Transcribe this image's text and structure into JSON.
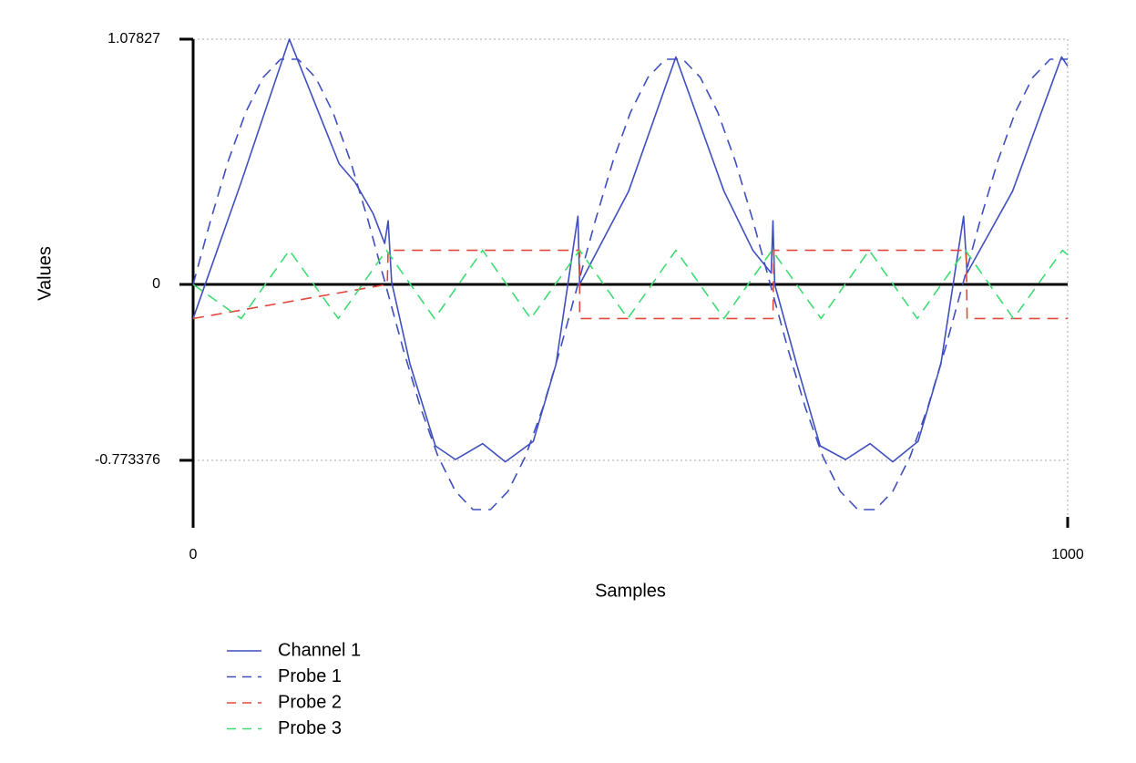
{
  "chart_data": {
    "type": "line",
    "x_label": "Samples",
    "y_label": "Values",
    "xlim": [
      0,
      1000
    ],
    "xticks": [
      0,
      1000
    ],
    "ylim": [
      -1.07,
      1.07827
    ],
    "yticks": [
      -0.773376,
      0,
      1.07827
    ],
    "grid": true,
    "legend": "bottom-left",
    "series": [
      {
        "name": "Channel 1",
        "color": "#3f4fbf",
        "dash": "solid",
        "x": [
          0,
          55,
          110,
          167,
          185,
          206,
          219,
          223,
          227,
          248,
          277,
          300,
          331,
          357,
          389,
          415,
          440,
          442,
          498,
          552,
          607,
          640,
          661,
          663,
          665,
          690,
          717,
          746,
          774,
          800,
          829,
          855,
          881,
          885,
          937,
          993,
          1000
        ],
        "values": [
          -0.15,
          0.45,
          1.07827,
          0.53,
          0.45,
          0.31,
          0.18,
          0.28,
          0.01,
          -0.35,
          -0.71,
          -0.77,
          -0.7,
          -0.78,
          -0.69,
          -0.35,
          0.3,
          0.0,
          0.41,
          1.0,
          0.41,
          0.15,
          0.05,
          0.28,
          0.0,
          -0.35,
          -0.71,
          -0.77,
          -0.7,
          -0.78,
          -0.69,
          -0.35,
          0.3,
          0.05,
          0.41,
          1.0,
          0.96
        ]
      },
      {
        "name": "Probe 1",
        "color": "#3f4fbf",
        "dash": "dashed",
        "x": [
          0,
          20,
          40,
          60,
          80,
          100,
          120,
          140,
          160,
          180,
          200,
          220,
          240,
          260,
          280,
          300,
          320,
          340,
          360,
          380,
          400,
          420,
          440,
          460,
          480,
          500,
          520,
          540,
          560,
          580,
          600,
          620,
          640,
          660,
          680,
          700,
          720,
          740,
          760,
          780,
          800,
          820,
          840,
          860,
          880,
          900,
          920,
          940,
          960,
          980,
          1000
        ],
        "values": [
          0,
          0.282,
          0.541,
          0.756,
          0.91,
          0.99,
          0.99,
          0.91,
          0.756,
          0.541,
          0.282,
          0,
          -0.282,
          -0.541,
          -0.756,
          -0.91,
          -0.99,
          -0.99,
          -0.91,
          -0.756,
          -0.541,
          -0.282,
          0,
          0.282,
          0.541,
          0.756,
          0.91,
          0.99,
          0.99,
          0.91,
          0.756,
          0.541,
          0.282,
          0,
          -0.282,
          -0.541,
          -0.756,
          -0.91,
          -0.99,
          -0.99,
          -0.91,
          -0.756,
          -0.541,
          -0.282,
          0,
          0.282,
          0.541,
          0.756,
          0.91,
          0.99,
          0.99
        ]
      },
      {
        "name": "Probe 2",
        "color": "#e0483c",
        "dash": "dashed",
        "x": [
          0,
          222,
          223,
          442,
          442,
          663,
          664,
          884,
          885,
          1000
        ],
        "values": [
          -0.15,
          0,
          0.15,
          0.15,
          -0.15,
          -0.15,
          0.15,
          0.15,
          -0.15,
          -0.15
        ]
      },
      {
        "name": "Probe 3",
        "color": "#3ddc72",
        "dash": "dashed",
        "x": [
          0,
          55,
          110,
          166,
          221,
          276,
          331,
          386,
          442,
          497,
          552,
          607,
          662,
          718,
          773,
          828,
          883,
          938,
          994,
          1000
        ],
        "values": [
          0,
          -0.15,
          0.15,
          -0.15,
          0.15,
          -0.15,
          0.15,
          -0.15,
          0.15,
          -0.15,
          0.15,
          -0.15,
          0.15,
          -0.15,
          0.15,
          -0.15,
          0.15,
          -0.15,
          0.15,
          0.13
        ]
      }
    ]
  }
}
